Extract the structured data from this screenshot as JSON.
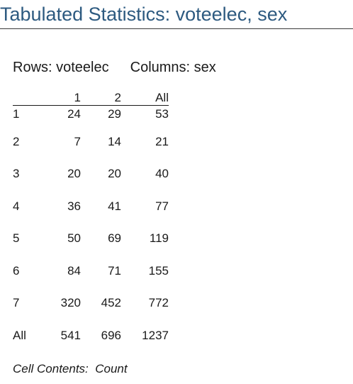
{
  "title": "Tabulated Statistics: voteelec, sex",
  "dims": {
    "rows_label": "Rows: voteelec",
    "cols_label": "Columns: sex"
  },
  "table": {
    "headers": [
      "",
      "1",
      "2",
      "All"
    ],
    "rows": [
      [
        "1",
        "24",
        "29",
        "53"
      ],
      [
        "2",
        "7",
        "14",
        "21"
      ],
      [
        "3",
        "20",
        "20",
        "40"
      ],
      [
        "4",
        "36",
        "41",
        "77"
      ],
      [
        "5",
        "50",
        "69",
        "119"
      ],
      [
        "6",
        "84",
        "71",
        "155"
      ],
      [
        "7",
        "320",
        "452",
        "772"
      ],
      [
        "All",
        "541",
        "696",
        "1237"
      ]
    ]
  },
  "footnote": "Cell Contents:  Count"
}
